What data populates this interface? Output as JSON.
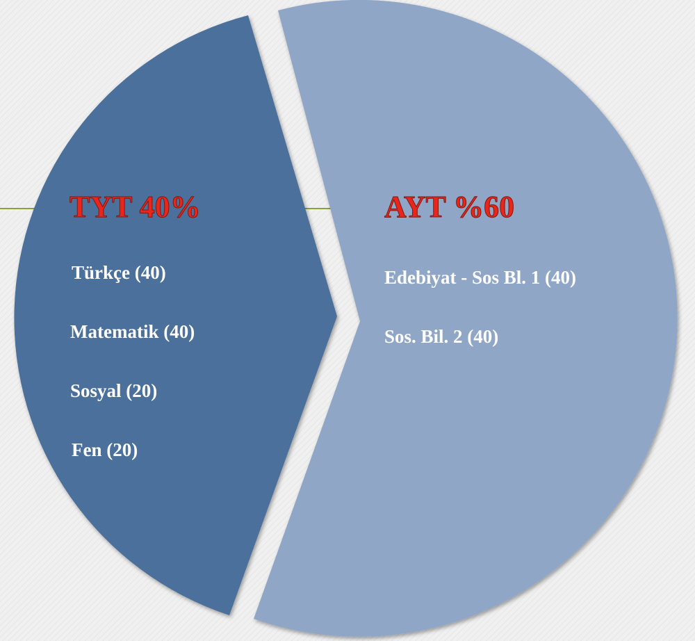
{
  "segments": [
    {
      "title": "TYT 40%",
      "items": [
        "Türkçe (40)",
        "Matematik (40)",
        "Sosyal (20)",
        "Fen (20)"
      ]
    },
    {
      "title": "AYT %60",
      "items": [
        "Edebiyat - Sos Bl. 1 (40)",
        "Sos. Bil. 2 (40)"
      ]
    }
  ]
}
